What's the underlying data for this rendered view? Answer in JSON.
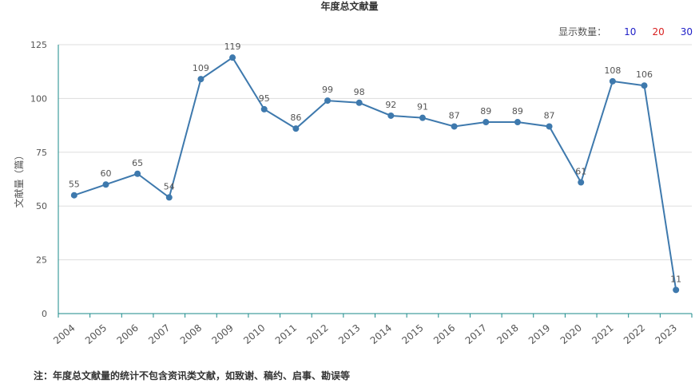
{
  "title": "年度总文献量",
  "count_selector": {
    "label": "显示数量：",
    "options": [
      {
        "text": "10",
        "color": "#2020c8"
      },
      {
        "text": "20",
        "color": "#d81e1e"
      },
      {
        "text": "30",
        "color": "#2020c8"
      }
    ]
  },
  "note": "注：年度总文献量的统计不包含资讯类文献，如致谢、稿约、启事、勘误等",
  "colors": {
    "line": "#3e79ad",
    "axis": "#1a8a8a",
    "grid": "#dddddd",
    "text": "#555555"
  },
  "chart_data": {
    "type": "line",
    "title": "年度总文献量",
    "xlabel": "",
    "ylabel": "文献量（篇）",
    "ylim": [
      0,
      125
    ],
    "yticks": [
      0,
      25,
      50,
      75,
      100,
      125
    ],
    "grid": true,
    "categories": [
      "2004",
      "2005",
      "2006",
      "2007",
      "2008",
      "2009",
      "2010",
      "2011",
      "2012",
      "2013",
      "2014",
      "2015",
      "2016",
      "2017",
      "2018",
      "2019",
      "2020",
      "2021",
      "2022",
      "2023"
    ],
    "series": [
      {
        "values": [
          55,
          60,
          65,
          54,
          109,
          119,
          95,
          86,
          99,
          98,
          92,
          91,
          87,
          89,
          89,
          87,
          61,
          108,
          106,
          11
        ]
      }
    ]
  }
}
